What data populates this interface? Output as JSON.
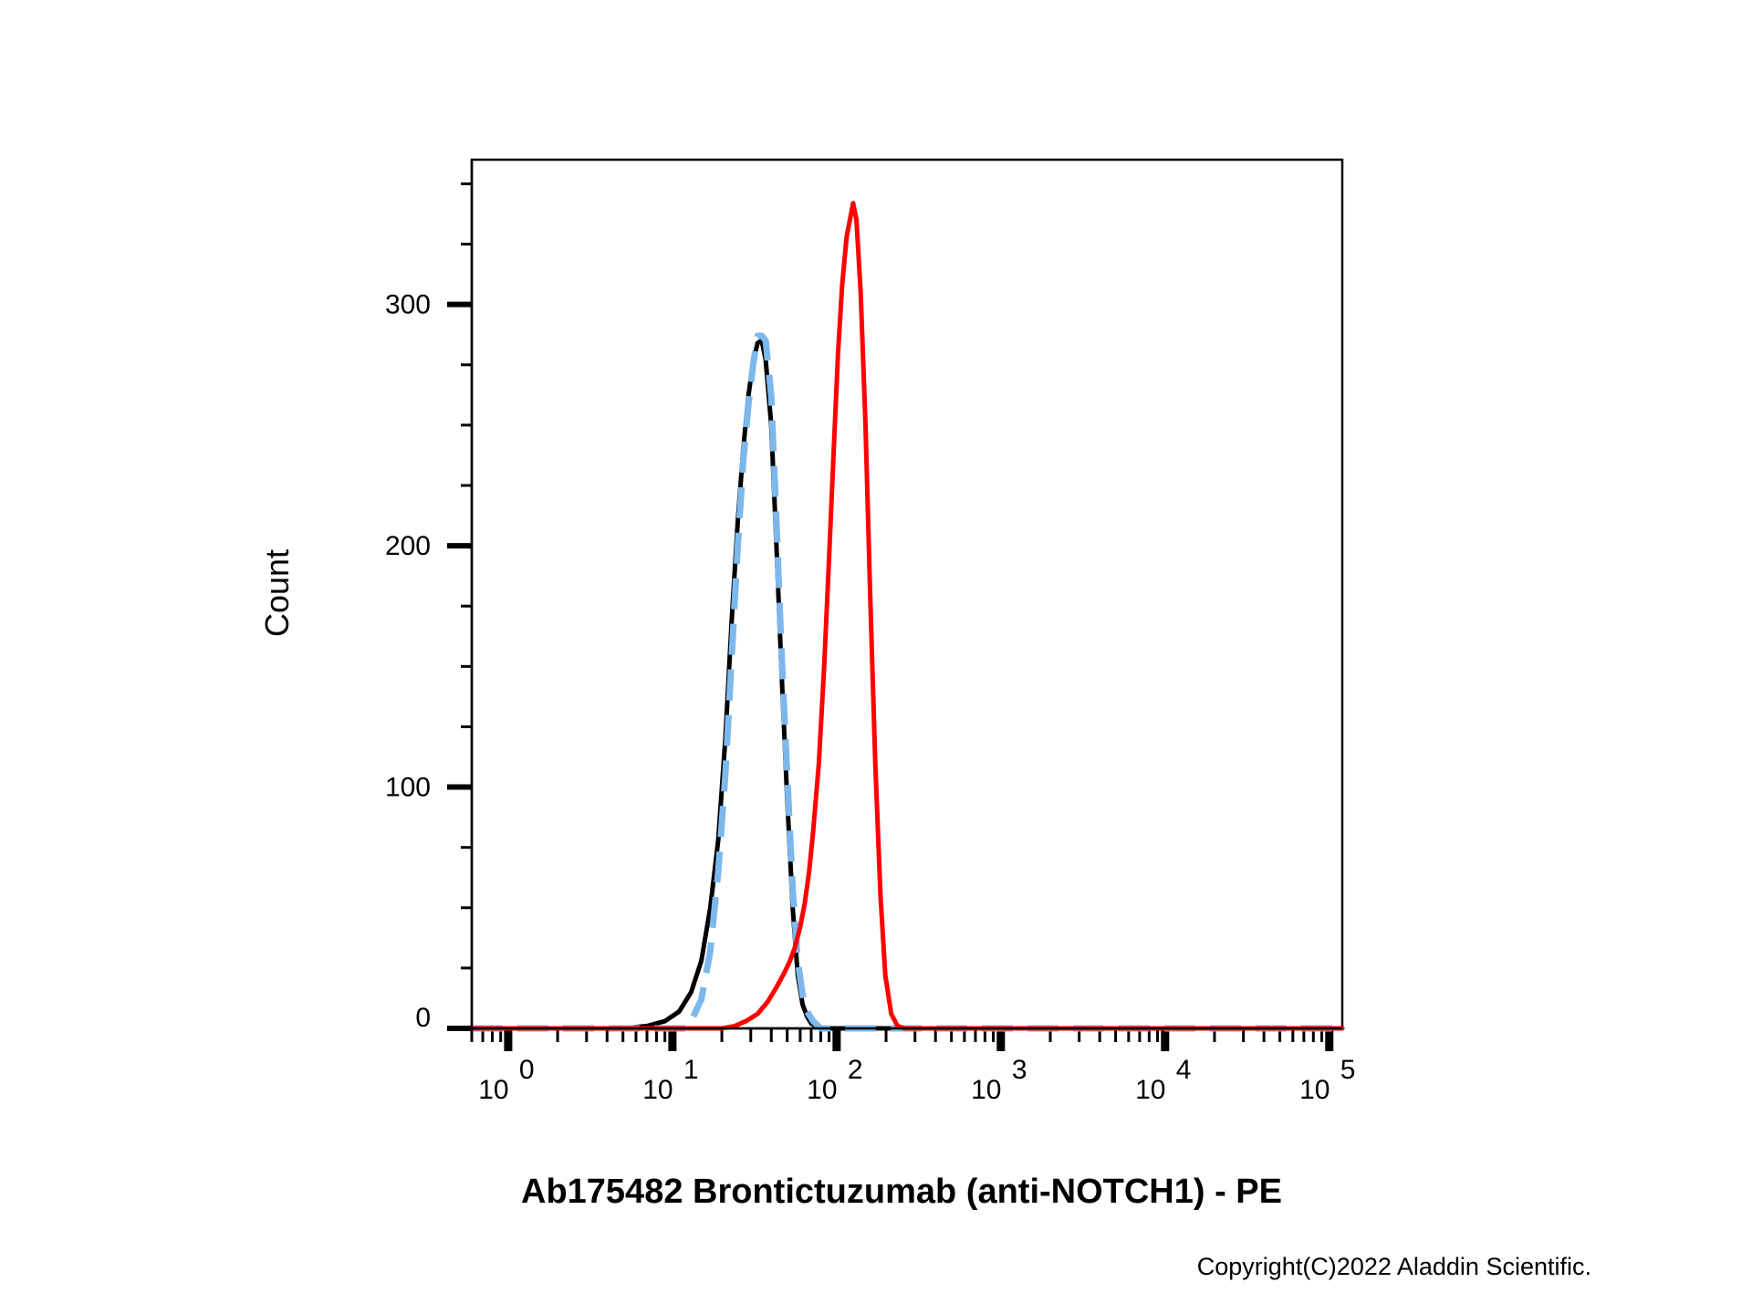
{
  "chart_data": {
    "type": "line",
    "title": "",
    "xlabel": "Ab175482 Brontictuzumab (anti-NOTCH1) - PE",
    "ylabel": "Count",
    "x_scale": "log",
    "xlim": [
      0.6,
      120000
    ],
    "ylim": [
      0,
      360
    ],
    "x_ticks": [
      {
        "base": "10",
        "exp": "0",
        "value": 1
      },
      {
        "base": "10",
        "exp": "1",
        "value": 10
      },
      {
        "base": "10",
        "exp": "2",
        "value": 100
      },
      {
        "base": "10",
        "exp": "3",
        "value": 1000
      },
      {
        "base": "10",
        "exp": "4",
        "value": 10000
      },
      {
        "base": "10",
        "exp": "5",
        "value": 100000
      }
    ],
    "y_ticks": [
      0,
      100,
      200,
      300
    ],
    "y_minor_step": 25,
    "grid": false,
    "legend": "none",
    "series": [
      {
        "color": "#000000",
        "style": "solid",
        "points": [
          [
            0.6,
            0
          ],
          [
            5,
            0
          ],
          [
            7,
            1
          ],
          [
            9,
            3
          ],
          [
            11,
            7
          ],
          [
            13,
            15
          ],
          [
            15,
            28
          ],
          [
            17,
            50
          ],
          [
            19,
            78
          ],
          [
            21,
            120
          ],
          [
            23,
            170
          ],
          [
            25,
            210
          ],
          [
            27,
            240
          ],
          [
            29,
            262
          ],
          [
            31,
            276
          ],
          [
            33,
            284
          ],
          [
            35,
            285
          ],
          [
            37,
            277
          ],
          [
            40,
            250
          ],
          [
            43,
            200
          ],
          [
            46,
            150
          ],
          [
            50,
            95
          ],
          [
            54,
            50
          ],
          [
            58,
            22
          ],
          [
            62,
            10
          ],
          [
            66,
            5
          ],
          [
            70,
            2
          ],
          [
            80,
            0
          ],
          [
            120000,
            0
          ]
        ]
      },
      {
        "color": "#7cb8ec",
        "style": "dashed",
        "points": [
          [
            0.6,
            0
          ],
          [
            12,
            0
          ],
          [
            13,
            3
          ],
          [
            15,
            12
          ],
          [
            17,
            32
          ],
          [
            19,
            65
          ],
          [
            21,
            105
          ],
          [
            23,
            155
          ],
          [
            25,
            200
          ],
          [
            27,
            235
          ],
          [
            29,
            258
          ],
          [
            31,
            275
          ],
          [
            33,
            287
          ],
          [
            35,
            287
          ],
          [
            37,
            285
          ],
          [
            40,
            262
          ],
          [
            43,
            210
          ],
          [
            46,
            158
          ],
          [
            50,
            105
          ],
          [
            54,
            58
          ],
          [
            58,
            28
          ],
          [
            62,
            14
          ],
          [
            66,
            7
          ],
          [
            72,
            3
          ],
          [
            80,
            0
          ],
          [
            120000,
            0
          ]
        ]
      },
      {
        "color": "#ff0000",
        "style": "solid",
        "points": [
          [
            0.6,
            0
          ],
          [
            20,
            0
          ],
          [
            24,
            1
          ],
          [
            28,
            3
          ],
          [
            33,
            6
          ],
          [
            38,
            11
          ],
          [
            43,
            17
          ],
          [
            48,
            23
          ],
          [
            52,
            28
          ],
          [
            56,
            34
          ],
          [
            60,
            42
          ],
          [
            64,
            52
          ],
          [
            68,
            65
          ],
          [
            72,
            82
          ],
          [
            78,
            110
          ],
          [
            84,
            150
          ],
          [
            90,
            195
          ],
          [
            96,
            240
          ],
          [
            102,
            280
          ],
          [
            108,
            308
          ],
          [
            115,
            328
          ],
          [
            122,
            337
          ],
          [
            126,
            342
          ],
          [
            132,
            335
          ],
          [
            140,
            305
          ],
          [
            150,
            250
          ],
          [
            160,
            180
          ],
          [
            172,
            110
          ],
          [
            185,
            55
          ],
          [
            198,
            22
          ],
          [
            215,
            6
          ],
          [
            235,
            1
          ],
          [
            260,
            0
          ],
          [
            120000,
            0
          ]
        ]
      }
    ]
  },
  "copyright": "Copyright(C)2022 Aladdin Scientific."
}
